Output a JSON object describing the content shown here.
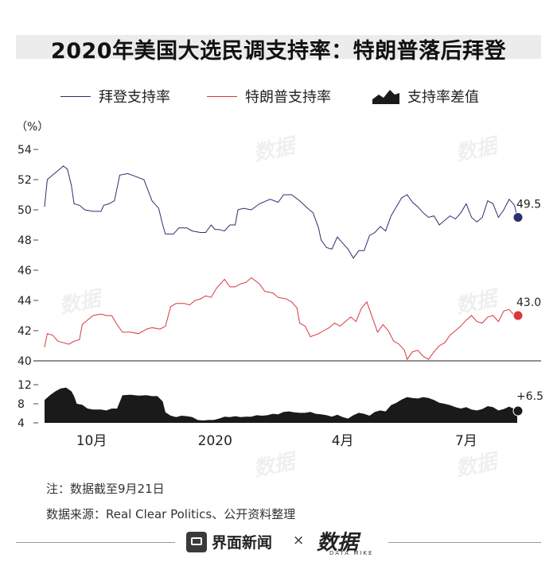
{
  "title": "2020年美国大选民调支持率：特朗普落后拜登",
  "legend": {
    "biden": "拜登支持率",
    "trump": "特朗普支持率",
    "diff": "支持率差值"
  },
  "colors": {
    "biden": "#2a2f6e",
    "trump": "#d9363e",
    "diff": "#1a1a1a"
  },
  "chart_data": {
    "type": "line",
    "ylabel": "（%）",
    "y_ticks": [
      40,
      42,
      44,
      46,
      48,
      50,
      52,
      54
    ],
    "ylim": [
      40,
      54.5
    ],
    "x_ticks": [
      "10月",
      "2020",
      "4月",
      "7月"
    ],
    "x_tick_positions": [
      35,
      127,
      222,
      314
    ],
    "n_days": 360,
    "series": [
      {
        "name": "拜登支持率",
        "end_label": "49.5",
        "points": [
          [
            0,
            50.2
          ],
          [
            2,
            52
          ],
          [
            6,
            52.3
          ],
          [
            10,
            52.6
          ],
          [
            14,
            52.9
          ],
          [
            17,
            52.7
          ],
          [
            20,
            51.6
          ],
          [
            22,
            50.4
          ],
          [
            26,
            50.3
          ],
          [
            30,
            50
          ],
          [
            36,
            49.9
          ],
          [
            42,
            49.9
          ],
          [
            44,
            50.3
          ],
          [
            48,
            50.4
          ],
          [
            52,
            50.6
          ],
          [
            56,
            52.3
          ],
          [
            62,
            52.4
          ],
          [
            68,
            52.2
          ],
          [
            74,
            52
          ],
          [
            80,
            50.6
          ],
          [
            85,
            50.1
          ],
          [
            88,
            49
          ],
          [
            90,
            48.4
          ],
          [
            96,
            48.4
          ],
          [
            100,
            48.8
          ],
          [
            106,
            48.8
          ],
          [
            110,
            48.6
          ],
          [
            116,
            48.5
          ],
          [
            120,
            48.5
          ],
          [
            124,
            49
          ],
          [
            127,
            48.7
          ],
          [
            130,
            48.7
          ],
          [
            134,
            48.6
          ],
          [
            138,
            49
          ],
          [
            142,
            49
          ],
          [
            144,
            50
          ],
          [
            148,
            50.1
          ],
          [
            154,
            50
          ],
          [
            160,
            50.4
          ],
          [
            168,
            50.7
          ],
          [
            174,
            50.5
          ],
          [
            178,
            51
          ],
          [
            184,
            51
          ],
          [
            190,
            50.6
          ],
          [
            196,
            50.1
          ],
          [
            200,
            49.8
          ],
          [
            204,
            48.8
          ],
          [
            206,
            48
          ],
          [
            210,
            47.5
          ],
          [
            214,
            47.4
          ],
          [
            218,
            48.2
          ],
          [
            222,
            47.8
          ],
          [
            226,
            47.4
          ],
          [
            230,
            46.8
          ],
          [
            234,
            47.3
          ],
          [
            238,
            47.3
          ],
          [
            242,
            48.3
          ],
          [
            246,
            48.5
          ],
          [
            250,
            48.9
          ],
          [
            254,
            48.6
          ],
          [
            258,
            49.6
          ],
          [
            262,
            50.2
          ],
          [
            266,
            50.8
          ],
          [
            270,
            51
          ],
          [
            274,
            50.5
          ],
          [
            278,
            50.2
          ],
          [
            282,
            49.8
          ],
          [
            286,
            49.5
          ],
          [
            290,
            49.6
          ],
          [
            294,
            49
          ],
          [
            298,
            49.3
          ],
          [
            302,
            49.6
          ],
          [
            306,
            49.4
          ],
          [
            310,
            49.8
          ],
          [
            314,
            50.4
          ],
          [
            318,
            49.5
          ],
          [
            322,
            49.2
          ],
          [
            326,
            49.5
          ],
          [
            330,
            50.6
          ],
          [
            334,
            50.4
          ],
          [
            338,
            49.5
          ],
          [
            342,
            50
          ],
          [
            346,
            50.7
          ],
          [
            350,
            50.3
          ],
          [
            352,
            49.5
          ]
        ],
        "end": [
          362,
          49.5
        ]
      },
      {
        "name": "特朗普支持率",
        "end_label": "43.0",
        "points": [
          [
            0,
            40.9
          ],
          [
            2,
            41.8
          ],
          [
            6,
            41.7
          ],
          [
            10,
            41.3
          ],
          [
            14,
            41.2
          ],
          [
            18,
            41.1
          ],
          [
            22,
            41.3
          ],
          [
            26,
            41.4
          ],
          [
            28,
            42.4
          ],
          [
            32,
            42.7
          ],
          [
            36,
            43
          ],
          [
            42,
            43.1
          ],
          [
            46,
            43
          ],
          [
            50,
            43
          ],
          [
            54,
            42.4
          ],
          [
            58,
            41.9
          ],
          [
            64,
            41.9
          ],
          [
            70,
            41.8
          ],
          [
            76,
            42.1
          ],
          [
            80,
            42.2
          ],
          [
            86,
            42.1
          ],
          [
            90,
            42.3
          ],
          [
            94,
            43.6
          ],
          [
            98,
            43.8
          ],
          [
            104,
            43.8
          ],
          [
            108,
            43.7
          ],
          [
            112,
            44
          ],
          [
            116,
            44.1
          ],
          [
            120,
            44.3
          ],
          [
            124,
            44.2
          ],
          [
            128,
            44.8
          ],
          [
            132,
            45.2
          ],
          [
            134,
            45.4
          ],
          [
            138,
            44.9
          ],
          [
            142,
            44.9
          ],
          [
            146,
            45.1
          ],
          [
            150,
            45.2
          ],
          [
            154,
            45.5
          ],
          [
            160,
            45.1
          ],
          [
            164,
            44.6
          ],
          [
            170,
            44.5
          ],
          [
            174,
            44.2
          ],
          [
            180,
            44.1
          ],
          [
            184,
            43.9
          ],
          [
            188,
            43.5
          ],
          [
            190,
            42.5
          ],
          [
            194,
            42.3
          ],
          [
            198,
            41.6
          ],
          [
            204,
            41.8
          ],
          [
            208,
            42
          ],
          [
            212,
            42.2
          ],
          [
            216,
            42.5
          ],
          [
            220,
            42.3
          ],
          [
            224,
            42.6
          ],
          [
            228,
            42.9
          ],
          [
            232,
            42.6
          ],
          [
            236,
            43.5
          ],
          [
            240,
            43.9
          ],
          [
            244,
            42.9
          ],
          [
            248,
            41.9
          ],
          [
            252,
            42.4
          ],
          [
            256,
            42
          ],
          [
            260,
            41.3
          ],
          [
            264,
            41.1
          ],
          [
            268,
            40.7
          ],
          [
            270,
            40.1
          ],
          [
            274,
            40.6
          ],
          [
            278,
            40.7
          ],
          [
            282,
            40.3
          ],
          [
            286,
            40.1
          ],
          [
            290,
            40.6
          ],
          [
            294,
            41
          ],
          [
            298,
            41.2
          ],
          [
            302,
            41.7
          ],
          [
            306,
            42
          ],
          [
            310,
            42.3
          ],
          [
            314,
            42.7
          ],
          [
            318,
            43
          ],
          [
            322,
            42.6
          ],
          [
            326,
            42.5
          ],
          [
            330,
            42.9
          ],
          [
            334,
            43
          ],
          [
            338,
            42.6
          ],
          [
            342,
            43.3
          ],
          [
            346,
            43.4
          ],
          [
            350,
            43
          ],
          [
            352,
            43
          ]
        ],
        "end": [
          362,
          43
        ]
      },
      {
        "name": "支持率差值",
        "end_label": "+6.5",
        "y_ticks": [
          4,
          8,
          12
        ],
        "ylim": [
          4,
          13
        ],
        "points": [
          [
            0,
            8.8
          ],
          [
            4,
            9.8
          ],
          [
            8,
            10.6
          ],
          [
            12,
            11.2
          ],
          [
            16,
            11.4
          ],
          [
            20,
            10.6
          ],
          [
            22,
            9.6
          ],
          [
            24,
            8
          ],
          [
            28,
            7.8
          ],
          [
            32,
            7
          ],
          [
            36,
            6.8
          ],
          [
            42,
            6.8
          ],
          [
            46,
            6.6
          ],
          [
            50,
            7
          ],
          [
            54,
            7
          ],
          [
            58,
            9.8
          ],
          [
            64,
            9.9
          ],
          [
            70,
            9.7
          ],
          [
            76,
            9.8
          ],
          [
            80,
            9.6
          ],
          [
            84,
            9.6
          ],
          [
            88,
            8.5
          ],
          [
            90,
            6.2
          ],
          [
            94,
            5.5
          ],
          [
            98,
            5.2
          ],
          [
            102,
            5.5
          ],
          [
            106,
            5.4
          ],
          [
            110,
            5.2
          ],
          [
            114,
            4.6
          ],
          [
            118,
            4.5
          ],
          [
            122,
            4.6
          ],
          [
            126,
            4.6
          ],
          [
            130,
            4.9
          ],
          [
            134,
            5.3
          ],
          [
            138,
            5.2
          ],
          [
            142,
            5.4
          ],
          [
            146,
            5.2
          ],
          [
            150,
            5.3
          ],
          [
            154,
            5.3
          ],
          [
            158,
            5.6
          ],
          [
            162,
            5.5
          ],
          [
            166,
            5.6
          ],
          [
            170,
            5.9
          ],
          [
            174,
            5.8
          ],
          [
            178,
            6.3
          ],
          [
            182,
            6.4
          ],
          [
            186,
            6.2
          ],
          [
            190,
            6.1
          ],
          [
            194,
            6.1
          ],
          [
            198,
            6.3
          ],
          [
            202,
            5.9
          ],
          [
            206,
            5.8
          ],
          [
            210,
            5.6
          ],
          [
            214,
            5.3
          ],
          [
            218,
            5.7
          ],
          [
            222,
            5.2
          ],
          [
            226,
            4.9
          ],
          [
            230,
            5.6
          ],
          [
            234,
            6.1
          ],
          [
            238,
            5.9
          ],
          [
            242,
            5.5
          ],
          [
            246,
            6.3
          ],
          [
            250,
            6.6
          ],
          [
            254,
            6.4
          ],
          [
            258,
            7.7
          ],
          [
            262,
            8.2
          ],
          [
            266,
            8.9
          ],
          [
            270,
            9.4
          ],
          [
            274,
            9.2
          ],
          [
            278,
            9.1
          ],
          [
            282,
            9.4
          ],
          [
            286,
            9.2
          ],
          [
            290,
            8.8
          ],
          [
            294,
            8.2
          ],
          [
            298,
            8
          ],
          [
            302,
            7.7
          ],
          [
            306,
            7.3
          ],
          [
            310,
            7
          ],
          [
            314,
            7.3
          ],
          [
            318,
            6.8
          ],
          [
            322,
            6.6
          ],
          [
            326,
            6.9
          ],
          [
            330,
            7.5
          ],
          [
            334,
            7.3
          ],
          [
            338,
            6.6
          ],
          [
            342,
            6.9
          ],
          [
            346,
            7.4
          ],
          [
            350,
            6.9
          ],
          [
            352,
            6.5
          ]
        ],
        "end": [
          362,
          6.5
        ]
      }
    ]
  },
  "notes": {
    "note1": "注：数据截至9月21日",
    "note2": "数据来源：Real Clear Politics、公开资料整理"
  },
  "footer": {
    "brand1": "界面新闻",
    "separator": "×",
    "brand2": "数据",
    "brand2_sub": "DATA MIKE"
  }
}
